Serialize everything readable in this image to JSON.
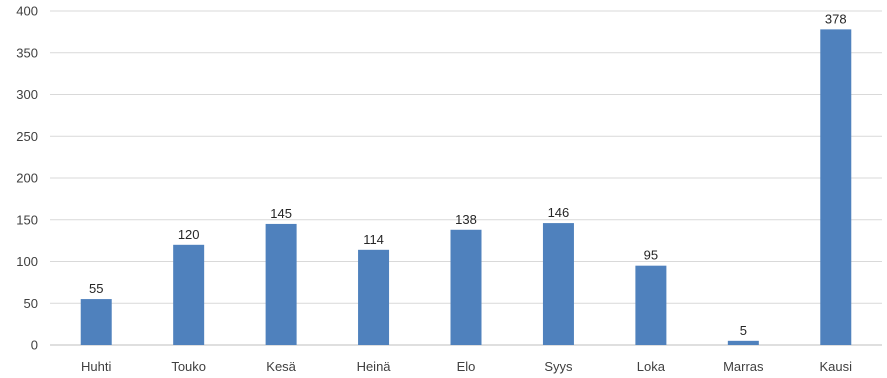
{
  "chart_data": {
    "type": "bar",
    "categories": [
      "Huhti",
      "Touko",
      "Kesä",
      "Heinä",
      "Elo",
      "Syys",
      "Loka",
      "Marras",
      "Kausi"
    ],
    "values": [
      55,
      120,
      145,
      114,
      138,
      146,
      95,
      5,
      378
    ],
    "title": "",
    "xlabel": "",
    "ylabel": "",
    "ylim": [
      0,
      400
    ],
    "yticks": [
      0,
      50,
      100,
      150,
      200,
      250,
      300,
      350,
      400
    ],
    "grid": true,
    "legend": "none",
    "bar_color": "#4f81bd",
    "data_labels": true
  }
}
